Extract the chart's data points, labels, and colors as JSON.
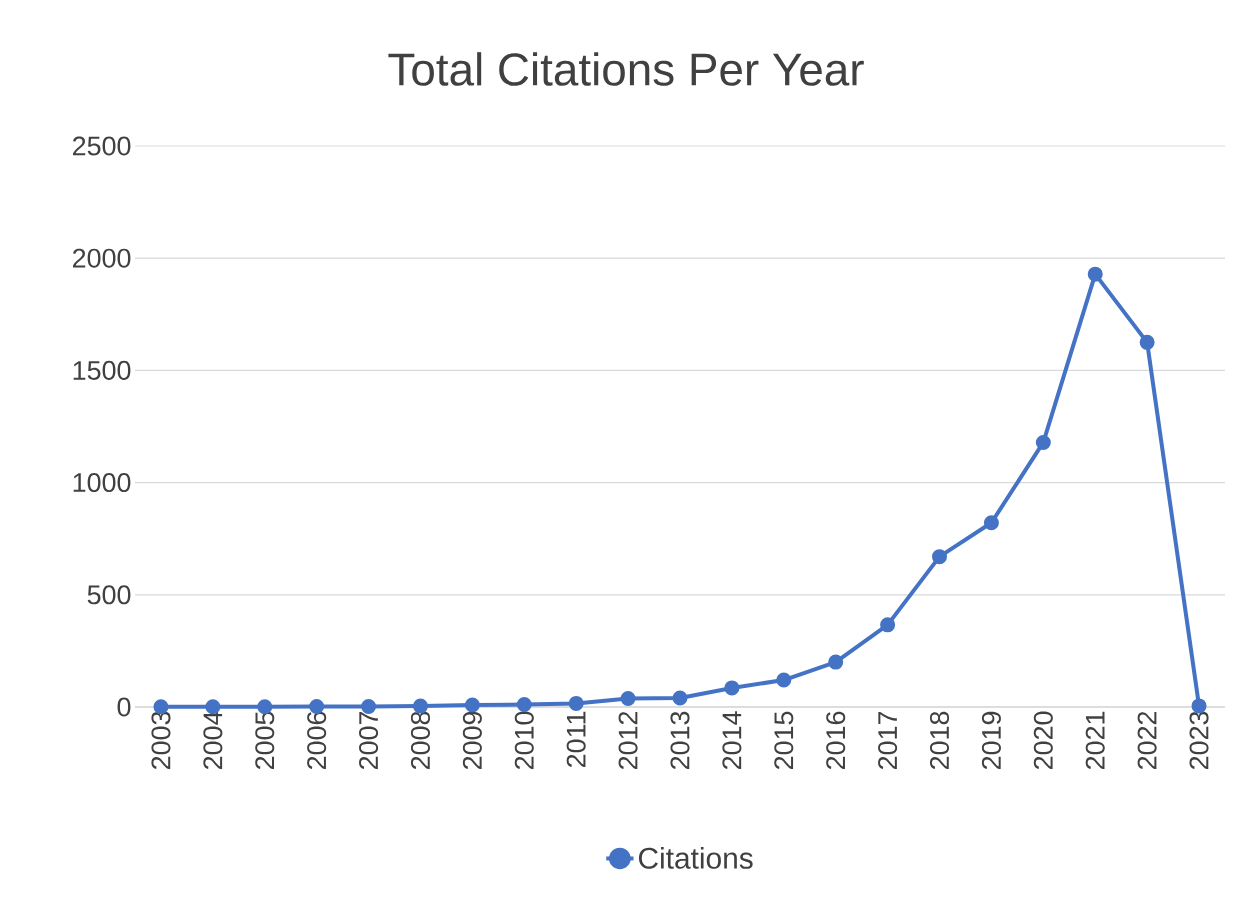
{
  "chart_data": {
    "type": "line",
    "title": "Total Citations Per Year",
    "categories": [
      "2003",
      "2004",
      "2005",
      "2006",
      "2007",
      "2008",
      "2009",
      "2010",
      "2011",
      "2012",
      "2013",
      "2014",
      "2015",
      "2016",
      "2017",
      "2018",
      "2019",
      "2020",
      "2021",
      "2022",
      "2023"
    ],
    "series": [
      {
        "name": "Citations",
        "color": "#4472c4",
        "values": [
          1,
          1,
          1,
          2,
          2,
          4,
          9,
          11,
          16,
          38,
          40,
          85,
          120,
          200,
          366,
          670,
          821,
          1179,
          1929,
          1625,
          5
        ]
      }
    ],
    "ylim": [
      0,
      2500
    ],
    "yticks": [
      0,
      500,
      1000,
      1500,
      2000,
      2500
    ],
    "grid": "y",
    "legend": "bottom",
    "marker": "circle",
    "line_style": "solid"
  }
}
